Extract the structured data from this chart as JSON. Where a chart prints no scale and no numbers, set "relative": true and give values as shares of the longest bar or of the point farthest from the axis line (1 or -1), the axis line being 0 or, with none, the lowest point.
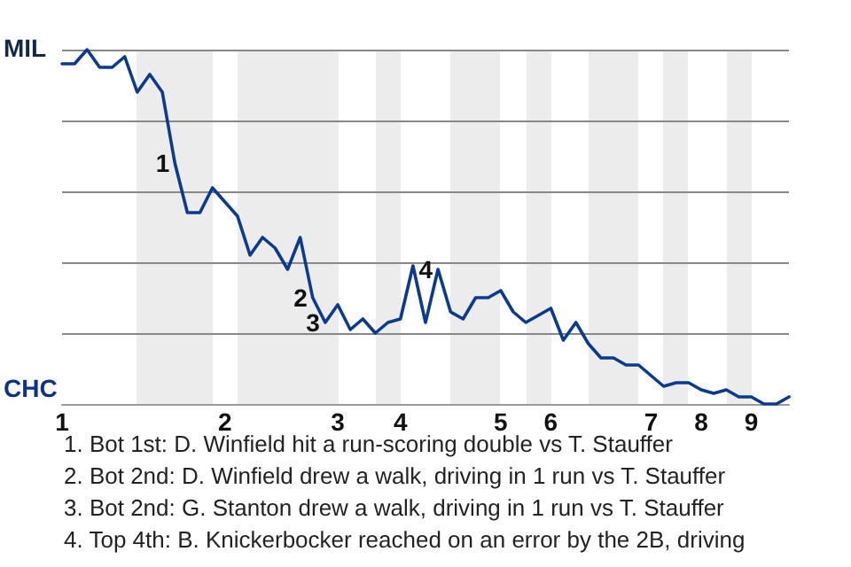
{
  "chart_data": {
    "type": "line",
    "relative": true,
    "categories": [
      "1",
      null,
      null,
      null,
      null,
      null,
      null,
      null,
      null,
      null,
      null,
      null,
      null,
      "2",
      null,
      null,
      null,
      null,
      null,
      null,
      null,
      null,
      "3",
      null,
      null,
      null,
      null,
      "4",
      null,
      null,
      null,
      null,
      null,
      null,
      null,
      "5",
      null,
      null,
      null,
      "6",
      null,
      null,
      null,
      null,
      null,
      null,
      null,
      "7",
      null,
      null,
      null,
      "8",
      null,
      null,
      null,
      "9",
      null,
      null,
      null
    ],
    "series": [
      {
        "color": "#0b3a8f",
        "values": [
          0.96,
          0.96,
          1,
          0.95,
          0.95,
          0.98,
          0.88,
          0.93,
          0.88,
          0.68,
          0.54,
          0.54,
          0.61,
          0.57,
          0.53,
          0.42,
          0.47,
          0.44,
          0.38,
          0.47,
          0.3,
          0.23,
          0.28,
          0.21,
          0.24,
          0.2,
          0.23,
          0.24,
          0.39,
          0.23,
          0.38,
          0.26,
          0.24,
          0.3,
          0.3,
          0.32,
          0.26,
          0.23,
          0.25,
          0.27,
          0.18,
          0.23,
          0.17,
          0.13,
          0.13,
          0.11,
          0.11,
          0.08,
          0.05,
          0.06,
          0.06,
          0.04,
          0.03,
          0.04,
          0.02,
          0.02,
          0,
          0,
          0.02
        ]
      }
    ],
    "grid": "y",
    "marker": "none",
    "line_style": "solid",
    "annotations": [
      "MIL",
      "CHC",
      "1",
      "2",
      "3",
      "4",
      "1. Bot 1st: D. Winfield hit a run-scoring double vs T. Stauffer",
      "2. Bot 2nd: D. Winfield drew a walk, driving in 1 run vs T. Stauffer",
      "3. Bot 2nd: G. Stanton drew a walk, driving in 1 run vs T. Stauffer",
      "4. Top 4th: B. Knickerbocker reached on an error by the 2B, driving"
    ]
  }
}
